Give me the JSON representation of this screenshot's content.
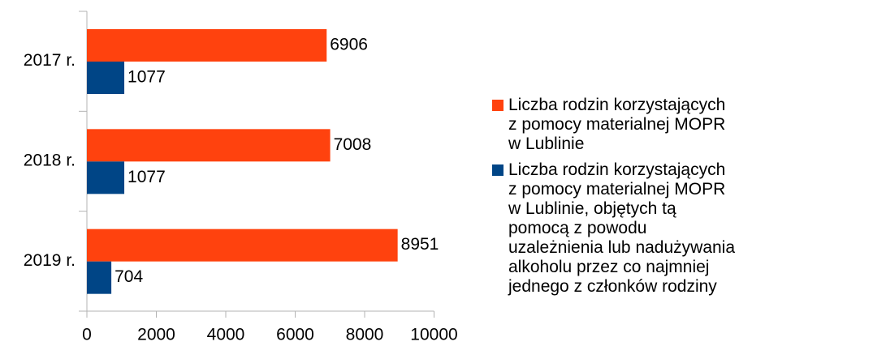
{
  "chart_data": {
    "type": "barh",
    "categories": [
      "2017 r.",
      "2018 r.",
      "2019 r."
    ],
    "series": [
      {
        "name": "Liczba rodzin korzystających z pomocy materialnej MOPR w Lublinie",
        "color": "#ff420e",
        "values": [
          6906,
          7008,
          8951
        ]
      },
      {
        "name": "Liczba rodzin korzystających z pomocy materialnej MOPR w Lublinie, objętych tą pomocą z powodu uzależnienia lub nadużywania alkoholu przez co najmniej jednego z członków rodziny",
        "color": "#004586",
        "values": [
          1077,
          1077,
          704
        ]
      }
    ],
    "xlim": [
      0,
      10000
    ],
    "xticks": [
      0,
      2000,
      4000,
      6000,
      8000,
      10000
    ],
    "grid": false,
    "legend": "right"
  }
}
